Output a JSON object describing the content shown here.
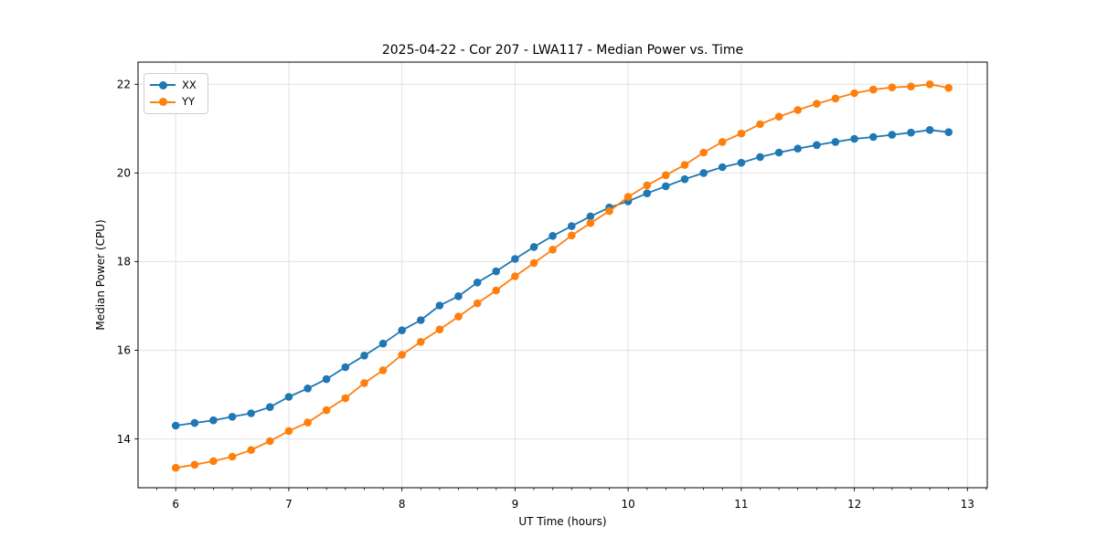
{
  "figure": {
    "background": "#ffffff",
    "text_color": "#000000",
    "grid_color": "#e2e2e2",
    "spine_color": "#000000"
  },
  "chart_data": {
    "type": "line",
    "title": "2025-04-22 - Cor 207 - LWA117 - Median Power vs. Time",
    "xlabel": "UT Time (hours)",
    "ylabel": "Median Power (CPU)",
    "xlim": [
      5.667,
      13.175
    ],
    "ylim": [
      12.9,
      22.5
    ],
    "x_ticks": [
      6,
      7,
      8,
      9,
      10,
      11,
      12,
      13
    ],
    "y_ticks": [
      14,
      16,
      18,
      20,
      22
    ],
    "x_minor_step": 0.1667,
    "grid": true,
    "legend": {
      "position": "upper-left",
      "entries": [
        "XX",
        "YY"
      ]
    },
    "marker": "circle",
    "x": [
      6.0,
      6.167,
      6.333,
      6.5,
      6.667,
      6.833,
      7.0,
      7.167,
      7.333,
      7.5,
      7.667,
      7.833,
      8.0,
      8.167,
      8.333,
      8.5,
      8.667,
      8.833,
      9.0,
      9.167,
      9.333,
      9.5,
      9.667,
      9.833,
      10.0,
      10.167,
      10.333,
      10.5,
      10.667,
      10.833,
      11.0,
      11.167,
      11.333,
      11.5,
      11.667,
      11.833,
      12.0,
      12.167,
      12.333,
      12.5,
      12.667,
      12.833
    ],
    "series": [
      {
        "name": "XX",
        "color": "#1f77b4",
        "values": [
          14.3,
          14.36,
          14.42,
          14.5,
          14.58,
          14.72,
          14.95,
          15.14,
          15.35,
          15.62,
          15.88,
          16.15,
          16.45,
          16.68,
          17.01,
          17.22,
          17.53,
          17.78,
          18.06,
          18.33,
          18.58,
          18.8,
          19.02,
          19.22,
          19.36,
          19.54,
          19.7,
          19.86,
          20.0,
          20.13,
          20.23,
          20.36,
          20.46,
          20.55,
          20.63,
          20.7,
          20.77,
          20.81,
          20.86,
          20.91,
          20.97,
          20.92
        ]
      },
      {
        "name": "YY",
        "color": "#ff7f0e",
        "values": [
          13.35,
          13.42,
          13.5,
          13.6,
          13.75,
          13.95,
          14.18,
          14.37,
          14.65,
          14.92,
          15.26,
          15.55,
          15.9,
          16.19,
          16.47,
          16.76,
          17.06,
          17.35,
          17.67,
          17.97,
          18.27,
          18.59,
          18.87,
          19.14,
          19.46,
          19.72,
          19.95,
          20.18,
          20.46,
          20.7,
          20.89,
          21.1,
          21.27,
          21.42,
          21.56,
          21.68,
          21.8,
          21.88,
          21.93,
          21.95,
          22.0,
          21.92
        ]
      }
    ]
  }
}
